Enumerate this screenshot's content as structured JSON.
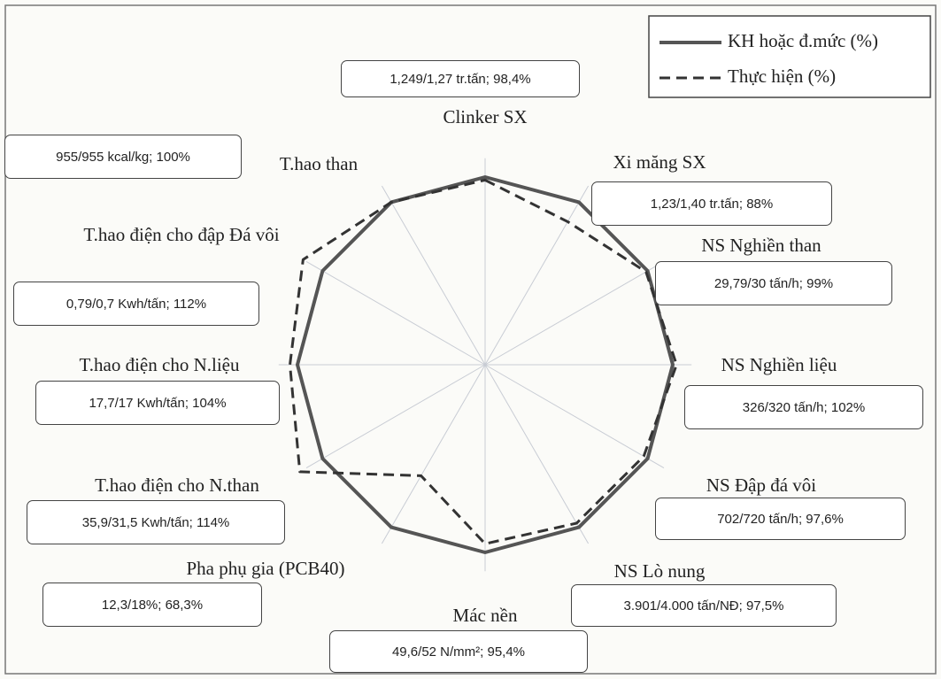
{
  "chart_data": {
    "type": "radar",
    "categories": [
      "Clinker SX",
      "Xi măng SX",
      "NS Nghiền than",
      "NS Nghiền liệu",
      "NS Đập đá vôi",
      "NS Lò nung",
      "Mác nền",
      "Pha phụ gia (PCB40)",
      "T.hao điện cho N.than",
      "T.hao điện cho N.liệu",
      "T.hao điện cho đập Đá vôi",
      "T.hao than"
    ],
    "rlim": [
      0,
      100
    ],
    "series": [
      {
        "name": "KH hoặc đ.mức (%)",
        "color": "#555555",
        "dash": "solid",
        "values": [
          100,
          100,
          100,
          100,
          100,
          100,
          100,
          100,
          100,
          100,
          100,
          100
        ]
      },
      {
        "name": "Thực hiện (%)",
        "color": "#333333",
        "dash": "dashed",
        "values": [
          98.4,
          88,
          99,
          102,
          97.6,
          97.5,
          95.4,
          68.3,
          114,
          104,
          112,
          100
        ]
      }
    ],
    "annotations": [
      "1,249/1,27 tr.tấn; 98,4%",
      "1,23/1,40 tr.tấn; 88%",
      "29,79/30 tấn/h; 99%",
      "326/320 tấn/h; 102%",
      "702/720 tấn/h; 97,6%",
      "3.901/4.000 tấn/NĐ; 97,5%",
      "49,6/52 N/mm²; 95,4%",
      "12,3/18%;  68,3%",
      "35,9/31,5 Kwh/tấn; 114%",
      "17,7/17 Kwh/tấn; 104%",
      "0,79/0,7 Kwh/tấn; 112%",
      "955/955 kcal/kg; 100%"
    ],
    "legend": "top-right"
  }
}
